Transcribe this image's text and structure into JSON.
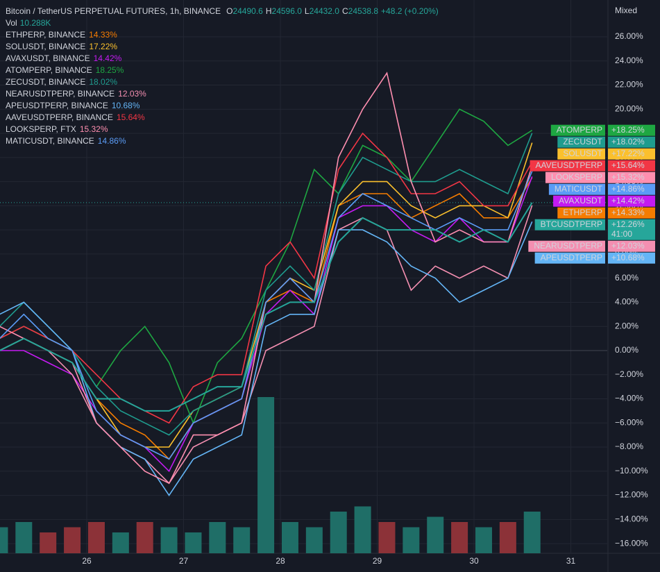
{
  "chart_data": {
    "type": "line",
    "title": "Bitcoin / TetherUS PERPETUAL FUTURES, 1h, BINANCE",
    "ohlc": [
      {
        "key": "O",
        "value": "24490.6"
      },
      {
        "key": "H",
        "value": "24596.0"
      },
      {
        "key": "L",
        "value": "24432.0"
      },
      {
        "key": "C",
        "value": "24538.8"
      }
    ],
    "change": "+48.2 (+0.20%)",
    "volume_label": "Vol",
    "volume_value": "10.288K",
    "scale_mode": "Mixed",
    "x": [
      25.1,
      25.35,
      25.6,
      25.85,
      26.1,
      26.35,
      26.6,
      26.85,
      27.1,
      27.35,
      27.6,
      27.85,
      28.1,
      28.35,
      28.6,
      28.85,
      29.1,
      29.35,
      29.6,
      29.85,
      30.1,
      30.35,
      30.6
    ],
    "xlim": [
      25.104,
      31.376
    ],
    "xticks": [
      26,
      27,
      28,
      29,
      30,
      31
    ],
    "ylim": [
      -16.8,
      29.05
    ],
    "yticks": [
      {
        "value": 26,
        "label": "26.00%"
      },
      {
        "value": 24,
        "label": "24.00%"
      },
      {
        "value": 22,
        "label": "22.00%"
      },
      {
        "value": 20,
        "label": "20.00%"
      },
      {
        "value": 18,
        "label": "18.00%"
      },
      {
        "value": 16,
        "label": "16.00%"
      },
      {
        "value": 14,
        "label": "14.00%"
      },
      {
        "value": 12,
        "label": "12.00%"
      },
      {
        "value": 10,
        "label": "10.00%"
      },
      {
        "value": 8,
        "label": "8.00%"
      },
      {
        "value": 6,
        "label": "6.00%"
      },
      {
        "value": 4,
        "label": "4.00%"
      },
      {
        "value": 2,
        "label": "2.00%"
      },
      {
        "value": 0,
        "label": "0.00%"
      },
      {
        "value": -2,
        "label": "−2.00%"
      },
      {
        "value": -4,
        "label": "−4.00%"
      },
      {
        "value": -6,
        "label": "−6.00%"
      },
      {
        "value": -8,
        "label": "−8.00%"
      },
      {
        "value": -10,
        "label": "−10.00%"
      },
      {
        "value": -12,
        "label": "−12.00%"
      },
      {
        "value": -14,
        "label": "−14.00%"
      },
      {
        "value": -16,
        "label": "−16.00%"
      }
    ],
    "grid": true,
    "main": {
      "name": "BTCUSDTPERP",
      "color": "#26a69a",
      "tag": "+12.26%",
      "countdown": "41:00",
      "values": [
        0,
        1,
        0,
        -1,
        -4,
        -4,
        -5,
        -5,
        -4,
        -3,
        -3,
        3,
        4,
        4,
        9,
        11,
        10,
        10,
        10,
        9,
        10,
        9,
        12.26
      ]
    },
    "volume": {
      "values": [
        5,
        6,
        4,
        5,
        6,
        4,
        6,
        5,
        4,
        6,
        5,
        30,
        6,
        5,
        8,
        9,
        6,
        5,
        7,
        6,
        5,
        6,
        8
      ],
      "up_color": "#1f6e67",
      "down_color": "#8c3238"
    },
    "series": [
      {
        "name": "ETHPERP",
        "legend": "ETHPERP, BINANCE",
        "value_label": "14.33%",
        "tag": "+14.33%",
        "color": "#f57c00",
        "values": [
          0,
          1,
          0,
          -1,
          -4,
          -6,
          -7,
          -9,
          -6,
          -5,
          -4,
          4,
          5,
          4,
          12,
          13,
          13,
          11,
          12,
          13,
          11,
          11,
          14.33
        ]
      },
      {
        "name": "SOLUSDT",
        "legend": "SOLUSDT, BINANCE",
        "value_label": "17.22%",
        "tag": "+17.22%",
        "color": "#fbc02d",
        "values": [
          0,
          1,
          0,
          -1,
          -4,
          -7,
          -8,
          -8,
          -5,
          -4,
          -3,
          4,
          6,
          5,
          12,
          14,
          14,
          12,
          11,
          12,
          12,
          11,
          17.22
        ]
      },
      {
        "name": "AVAXUSDT",
        "legend": "AVAXUSDT, BINANCE",
        "value_label": "14.42%",
        "tag": "+14.42%",
        "color": "#c41bf2",
        "values": [
          0,
          0,
          -1,
          -2,
          -5,
          -7,
          -8,
          -10,
          -6,
          -5,
          -4,
          3,
          5,
          3,
          11,
          12,
          12,
          10,
          9,
          11,
          9,
          9,
          14.42
        ]
      },
      {
        "name": "ATOMPERP",
        "legend": "ATOMPERP, BINANCE",
        "value_label": "18.25%",
        "tag": "+18.25%",
        "color": "#1ea742",
        "values": [
          1,
          2,
          1,
          0,
          -3,
          0,
          2,
          -1,
          -6,
          -1,
          1,
          5,
          9,
          15,
          13,
          17,
          16,
          14,
          17,
          20,
          19,
          17,
          18.25
        ]
      },
      {
        "name": "ZECUSDT",
        "legend": "ZECUSDT, BINANCE",
        "value_label": "18.02%",
        "tag": "+18.02%",
        "color": "#1f9c8e",
        "values": [
          2,
          4,
          2,
          0,
          -3,
          -5,
          -6,
          -7,
          -5,
          -4,
          -3,
          5,
          7,
          5,
          13,
          16,
          15,
          14,
          14,
          15,
          14,
          13,
          18.02
        ]
      },
      {
        "name": "NEARUSDTPERP",
        "legend": "NEARUSDTPERP, BINANCE",
        "value_label": "12.03%",
        "tag": "+12.03%",
        "color": "#f48fb1",
        "values": [
          0,
          1,
          0,
          -2,
          -6,
          -8,
          -9,
          -11,
          -8,
          -7,
          -6,
          0,
          1,
          2,
          10,
          11,
          10,
          5,
          7,
          6,
          7,
          6,
          12.03
        ]
      },
      {
        "name": "APEUSDTPERP",
        "legend": "APEUSDTPERP, BINANCE",
        "value_label": "10.68%",
        "tag": "+10.68%",
        "color": "#64b5f6",
        "values": [
          3,
          4,
          2,
          0,
          -6,
          -8,
          -9,
          -12,
          -9,
          -8,
          -7,
          2,
          3,
          3,
          10,
          10,
          9,
          7,
          6,
          4,
          5,
          6,
          10.68
        ]
      },
      {
        "name": "AAVEUSDTPERP",
        "legend": "AAVEUSDTPERP, BINANCE",
        "value_label": "15.64%",
        "tag": "+15.64%",
        "color": "#f23645",
        "values": [
          1,
          2,
          1,
          0,
          -2,
          -4,
          -5,
          -6,
          -3,
          -2,
          -2,
          7,
          9,
          6,
          15,
          18,
          16,
          13,
          13,
          14,
          12,
          12,
          15.64
        ]
      },
      {
        "name": "LOOKSPERP",
        "legend": "LOOKSPERP, FTX",
        "value_label": "15.32%",
        "tag": "+15.32%",
        "color": "#ff8fb0",
        "values": [
          2,
          1,
          0,
          -1,
          -6,
          -8,
          -10,
          -11,
          -7,
          -7,
          -6,
          4,
          6,
          4,
          16,
          20,
          23,
          14,
          9,
          10,
          9,
          9,
          15.32
        ]
      },
      {
        "name": "MATICUSDT",
        "legend": "MATICUSDT, BINANCE",
        "value_label": "14.86%",
        "tag": "+14.86%",
        "color": "#5b9cf6",
        "values": [
          1,
          3,
          1,
          0,
          -5,
          -7,
          -8,
          -9,
          -6,
          -5,
          -4,
          4,
          6,
          4,
          11,
          13,
          12,
          11,
          10,
          11,
          10,
          10,
          14.86
        ]
      }
    ]
  }
}
